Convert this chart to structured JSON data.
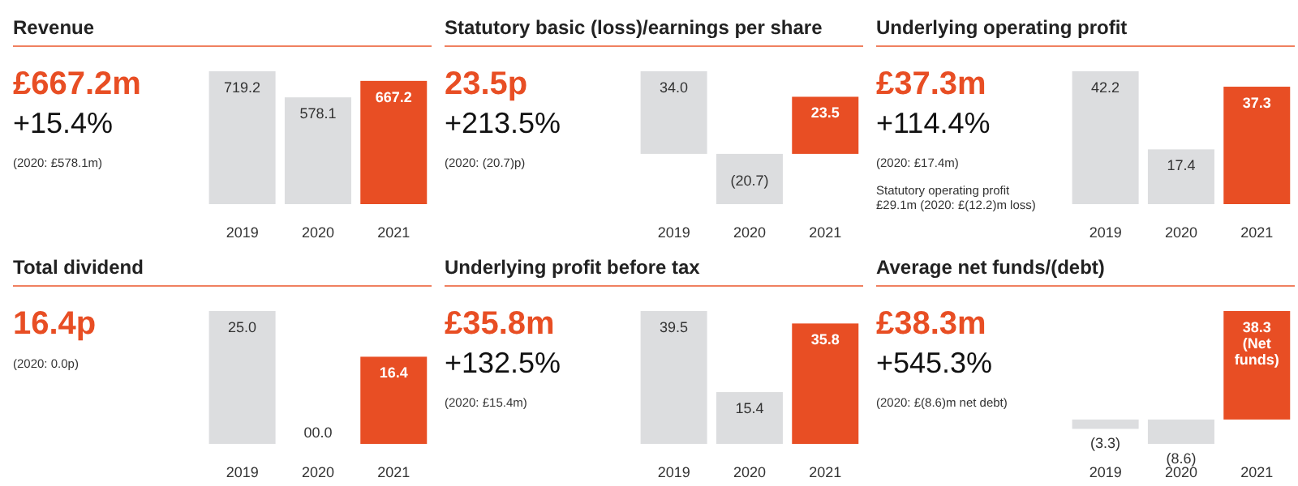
{
  "chart_data": [
    {
      "type": "bar",
      "title": "Revenue",
      "subtitle": "£667.2m",
      "annotations": [
        "+15.4%",
        "(2020: £578.1m)"
      ],
      "categories": [
        "2019",
        "2020",
        "2021"
      ],
      "values": [
        719.2,
        578.1,
        667.2
      ],
      "colors": [
        "#dcdddf",
        "#dcdddf",
        "#e84e24"
      ],
      "data_labels": true
    },
    {
      "type": "bar",
      "title": "Statutory basic (loss)/earnings per share",
      "subtitle": "23.5p",
      "annotations": [
        "+213.5%",
        "(2020: (20.7)p)"
      ],
      "categories": [
        "2019",
        "2020",
        "2021"
      ],
      "values": [
        34.0,
        -20.7,
        23.5
      ],
      "value_labels": [
        "34.0",
        "(20.7)",
        "23.5"
      ],
      "colors": [
        "#dcdddf",
        "#dcdddf",
        "#e84e24"
      ]
    },
    {
      "type": "bar",
      "title": "Underlying operating profit",
      "subtitle": "£37.3m",
      "annotations": [
        "+114.4%",
        "(2020: £17.4m)",
        "Statutory operating profit £29.1m (2020: £(12.2)m loss)"
      ],
      "categories": [
        "2019",
        "2020",
        "2021"
      ],
      "values": [
        42.2,
        17.4,
        37.3
      ],
      "colors": [
        "#dcdddf",
        "#dcdddf",
        "#e84e24"
      ],
      "data_labels": true
    },
    {
      "type": "bar",
      "title": "Total dividend",
      "subtitle": "16.4p",
      "annotations": [
        "(2020: 0.0p)"
      ],
      "categories": [
        "2019",
        "2020",
        "2021"
      ],
      "values": [
        25.0,
        0,
        16.4
      ],
      "value_labels": [
        "25.0",
        "00.0",
        "16.4"
      ],
      "colors": [
        "#dcdddf",
        "#dcdddf",
        "#e84e24"
      ]
    },
    {
      "type": "bar",
      "title": "Underlying profit before tax",
      "subtitle": "£35.8m",
      "annotations": [
        "+132.5%",
        "(2020: £15.4m)"
      ],
      "categories": [
        "2019",
        "2020",
        "2021"
      ],
      "values": [
        39.5,
        15.4,
        35.8
      ],
      "colors": [
        "#dcdddf",
        "#dcdddf",
        "#e84e24"
      ],
      "data_labels": true
    },
    {
      "type": "bar",
      "title": "Average net funds/(debt)",
      "subtitle": "£38.3m",
      "annotations": [
        "+545.3%",
        "(2020: £(8.6)m net debt)"
      ],
      "categories": [
        "2019",
        "2020",
        "2021"
      ],
      "values": [
        -3.3,
        -8.6,
        38.3
      ],
      "value_labels": [
        "(3.3)",
        "(8.6)",
        "38.3 (Net funds)"
      ],
      "colors": [
        "#dcdddf",
        "#dcdddf",
        "#e84e24"
      ]
    }
  ]
}
